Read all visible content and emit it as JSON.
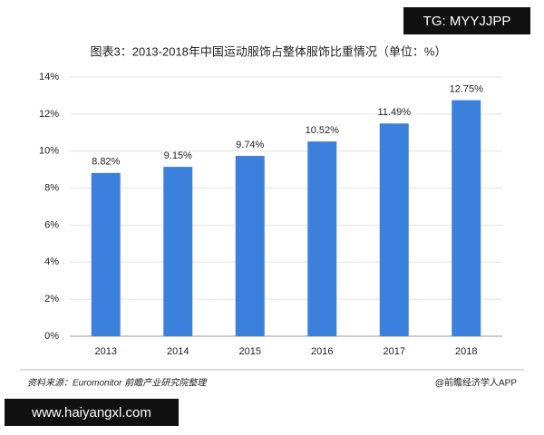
{
  "chart_data": {
    "type": "bar",
    "title": "图表3：2013-2018年中国运动服饰占整体服饰比重情况（单位：%）",
    "categories": [
      "2013",
      "2014",
      "2015",
      "2016",
      "2017",
      "2018"
    ],
    "values": [
      8.82,
      9.15,
      9.74,
      10.52,
      11.49,
      12.75
    ],
    "value_labels": [
      "8.82%",
      "9.15%",
      "9.74%",
      "10.52%",
      "11.49%",
      "12.75%"
    ],
    "color": "#3c80de",
    "ylim": [
      0,
      14
    ],
    "yticks": [
      {
        "value": 0,
        "label": "0%"
      },
      {
        "value": 2,
        "label": "2%"
      },
      {
        "value": 4,
        "label": "4%"
      },
      {
        "value": 6,
        "label": "6%"
      },
      {
        "value": 8,
        "label": "8%"
      },
      {
        "value": 10,
        "label": "10%"
      },
      {
        "value": 12,
        "label": "12%"
      },
      {
        "value": 14,
        "label": "14%"
      }
    ],
    "grid": true,
    "source": "资料来源：Euromonitor 前瞻产业研究院整理",
    "credit": "@前瞻经济学人APP"
  },
  "watermarks": {
    "top": "TG: MYYJJPP",
    "bottom": "www.haiyangxl.com"
  }
}
